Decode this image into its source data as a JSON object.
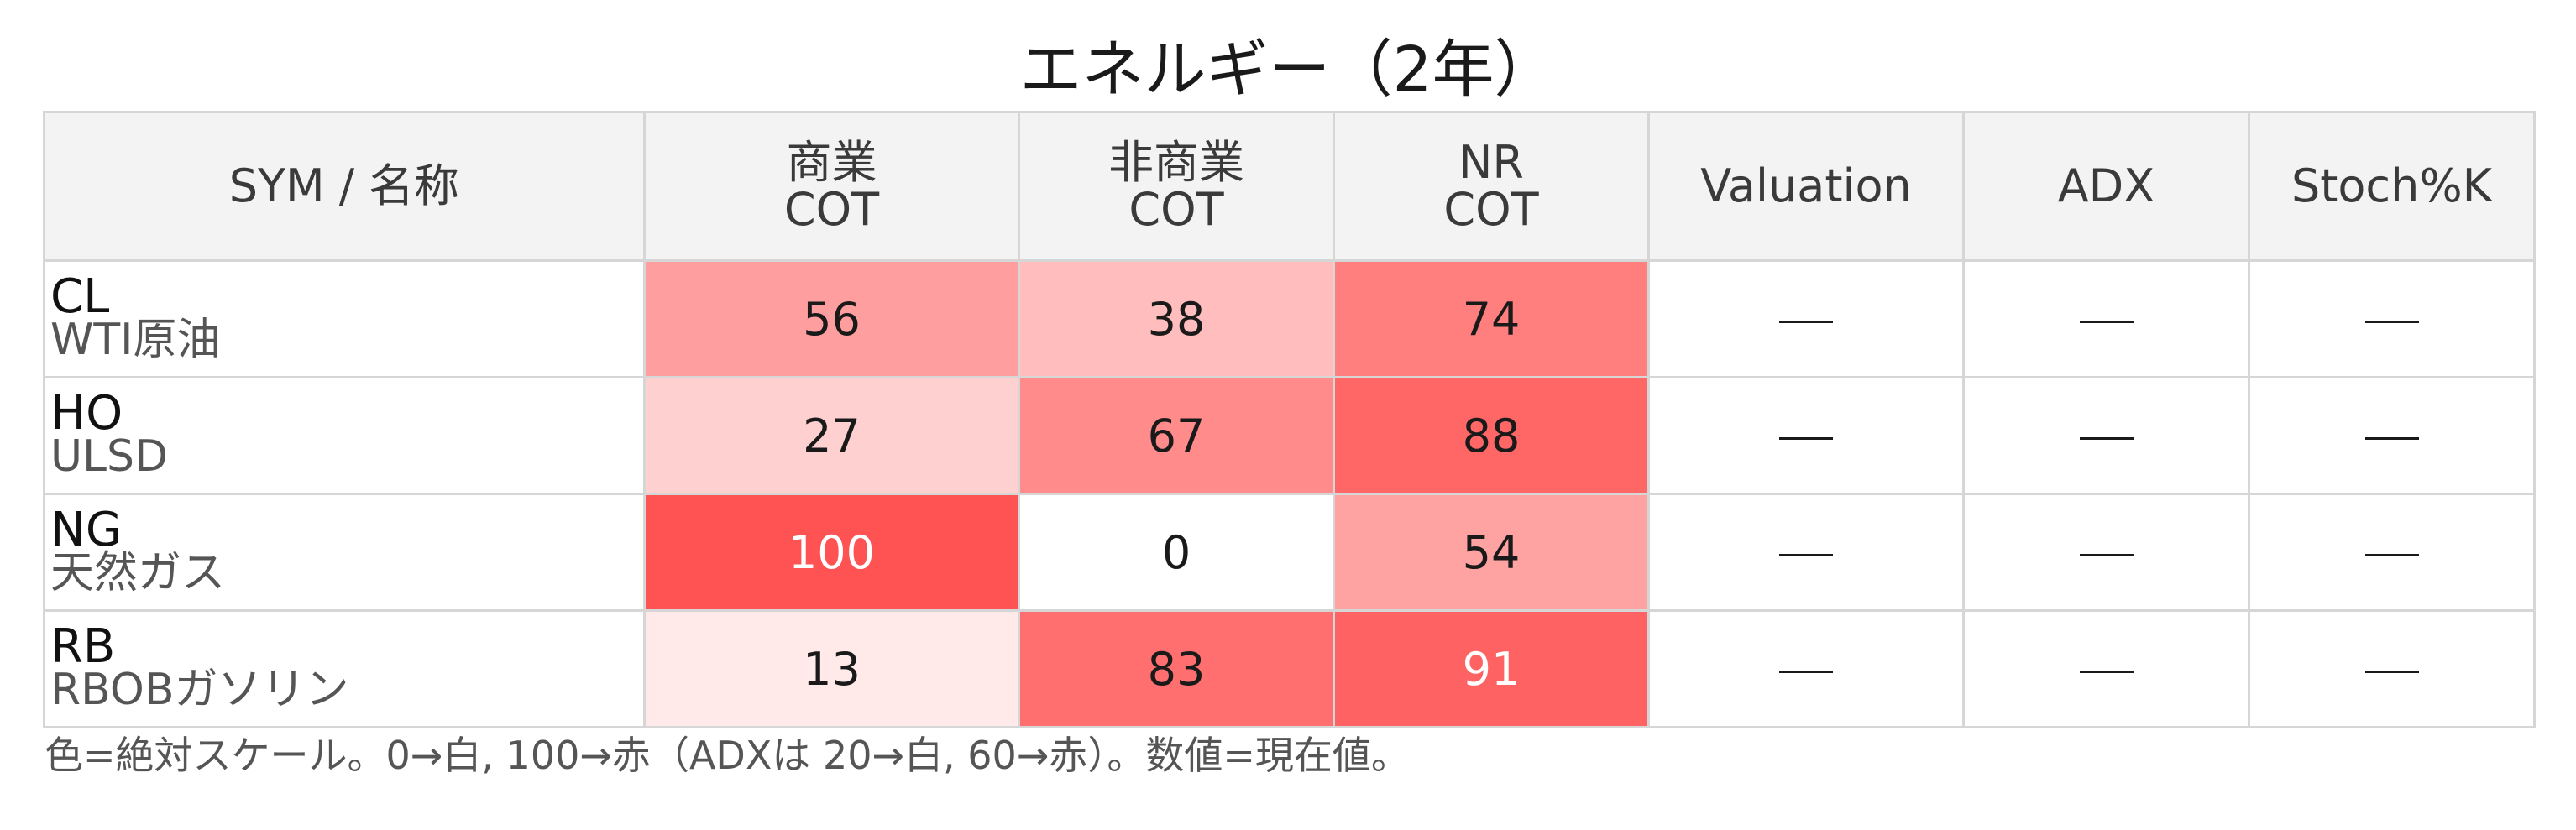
{
  "title": "エネルギー（2年）",
  "chart_data": {
    "type": "heatmap",
    "title": "エネルギー（2年）",
    "columns": [
      {
        "key": "sym",
        "label": "SYM / 名称"
      },
      {
        "key": "comm",
        "label_line1": "商業",
        "label_line2": "COT"
      },
      {
        "key": "noncomm",
        "label_line1": "非商業",
        "label_line2": "COT"
      },
      {
        "key": "nr",
        "label_line1": "NR",
        "label_line2": "COT"
      },
      {
        "key": "valuation",
        "label": "Valuation"
      },
      {
        "key": "adx",
        "label": "ADX"
      },
      {
        "key": "stoch",
        "label": "Stoch%K"
      }
    ],
    "rows": [
      {
        "sym": "CL",
        "name": "WTI原油",
        "comm": 56,
        "noncomm": 38,
        "nr": 74,
        "valuation": "—",
        "adx": "—",
        "stoch": "—"
      },
      {
        "sym": "HO",
        "name": "ULSD",
        "comm": 27,
        "noncomm": 67,
        "nr": 88,
        "valuation": "—",
        "adx": "—",
        "stoch": "—"
      },
      {
        "sym": "NG",
        "name": "天然ガス",
        "comm": 100,
        "noncomm": 0,
        "nr": 54,
        "valuation": "—",
        "adx": "—",
        "stoch": "—"
      },
      {
        "sym": "RB",
        "name": "RBOBガソリン",
        "comm": 13,
        "noncomm": 83,
        "nr": 91,
        "valuation": "—",
        "adx": "—",
        "stoch": "—"
      }
    ],
    "color_scale": {
      "min": 0,
      "max": 100,
      "min_color": "#ffffff",
      "max_color": "#ff5252"
    }
  },
  "note": "色=絶対スケール。0→白, 100→赤（ADXは 20→白, 60→赤）。数値=現在値。"
}
